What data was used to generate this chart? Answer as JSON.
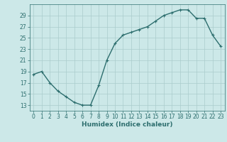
{
  "x": [
    0,
    1,
    2,
    3,
    4,
    5,
    6,
    7,
    8,
    9,
    10,
    11,
    12,
    13,
    14,
    15,
    16,
    17,
    18,
    19,
    20,
    21,
    22,
    23
  ],
  "y": [
    18.5,
    19.0,
    17.0,
    15.5,
    14.5,
    13.5,
    13.0,
    13.0,
    16.5,
    21.0,
    24.0,
    25.5,
    26.0,
    26.5,
    27.0,
    28.0,
    29.0,
    29.5,
    30.0,
    30.0,
    28.5,
    28.5,
    25.5,
    23.5
  ],
  "line_color": "#2d6e6e",
  "marker": "+",
  "marker_size": 3,
  "background_color": "#cce8e8",
  "grid_color": "#aacccc",
  "xlabel": "Humidex (Indice chaleur)",
  "xlim": [
    -0.5,
    23.5
  ],
  "ylim": [
    12,
    31
  ],
  "yticks": [
    13,
    15,
    17,
    19,
    21,
    23,
    25,
    27,
    29
  ],
  "xticks": [
    0,
    1,
    2,
    3,
    4,
    5,
    6,
    7,
    8,
    9,
    10,
    11,
    12,
    13,
    14,
    15,
    16,
    17,
    18,
    19,
    20,
    21,
    22,
    23
  ],
  "tick_color": "#2d6e6e",
  "label_fontsize": 6.5,
  "tick_fontsize": 5.5,
  "line_width": 1.0
}
